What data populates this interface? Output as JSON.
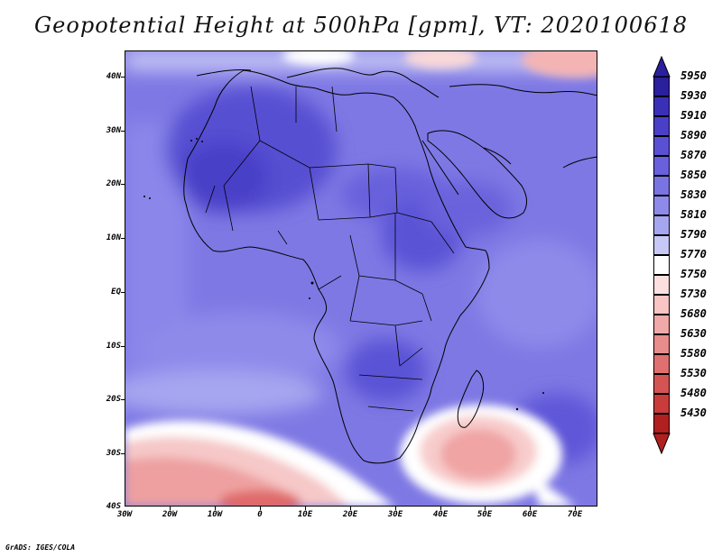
{
  "title": "Geopotential Height at 500hPa [gpm], VT: 2020100618",
  "footer": "GrADS: IGES/COLA",
  "axes": {
    "lat_labels": [
      "40N",
      "30N",
      "20N",
      "10N",
      "EQ",
      "10S",
      "20S",
      "30S",
      "40S"
    ],
    "lon_labels": [
      "30W",
      "20W",
      "10W",
      "0",
      "10E",
      "20E",
      "30E",
      "40E",
      "50E",
      "60E",
      "70E"
    ],
    "lon_range": [
      -30,
      75
    ],
    "lat_range": [
      -40,
      44
    ]
  },
  "colorbar": {
    "levels": [
      "5950",
      "5930",
      "5910",
      "5890",
      "5870",
      "5850",
      "5830",
      "5810",
      "5790",
      "5770",
      "5750",
      "5730",
      "5680",
      "5630",
      "5580",
      "5530",
      "5480",
      "5430"
    ],
    "colors": [
      "#2a1f9c",
      "#3a30b8",
      "#4a40c8",
      "#5a50d4",
      "#6860dc",
      "#7a74e2",
      "#8e8aea",
      "#a6a6f0",
      "#c8c8f6",
      "#ffffff",
      "#fce0e0",
      "#f8c4c4",
      "#f0a8a8",
      "#e88c8c",
      "#e07070",
      "#d45454",
      "#c83c3c",
      "#b02020"
    ]
  }
}
